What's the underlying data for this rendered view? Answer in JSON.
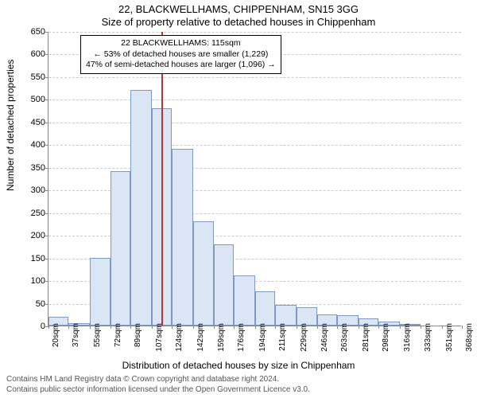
{
  "title_line1": "22, BLACKWELLHAMS, CHIPPENHAM, SN15 3GG",
  "title_line2": "Size of property relative to detached houses in Chippenham",
  "ylabel": "Number of detached properties",
  "xlabel": "Distribution of detached houses by size in Chippenham",
  "footer_line1": "Contains HM Land Registry data © Crown copyright and database right 2024.",
  "footer_line2": "Contains public sector information licensed under the Open Government Licence v3.0.",
  "chart": {
    "type": "histogram",
    "ylim": [
      0,
      650
    ],
    "ytick_step": 50,
    "xticks": [
      20,
      37,
      55,
      72,
      89,
      107,
      124,
      142,
      159,
      176,
      194,
      211,
      229,
      246,
      263,
      281,
      298,
      316,
      333,
      351,
      368
    ],
    "x_unit_suffix": "sqm",
    "bar_fill": "#dbe6f5",
    "bar_stroke": "#7d99c4",
    "grid_color": "#cccccc",
    "axis_color": "#888888",
    "background": "#ffffff",
    "bars": [
      20,
      6,
      150,
      340,
      520,
      480,
      390,
      230,
      180,
      110,
      75,
      45,
      40,
      25,
      22,
      15,
      8,
      4,
      0,
      0
    ],
    "reference_line": {
      "x_value": 115,
      "color": "#c43131"
    },
    "annotation": {
      "line1": "22 BLACKWELLHAMS: 115sqm",
      "line2": "← 53% of detached houses are smaller (1,229)",
      "line3": "47% of semi-detached houses are larger (1,096) →"
    },
    "title_fontsize": 13,
    "label_fontsize": 12,
    "tick_fontsize": 11,
    "xtick_fontsize": 10,
    "annot_fontsize": 10.5
  }
}
